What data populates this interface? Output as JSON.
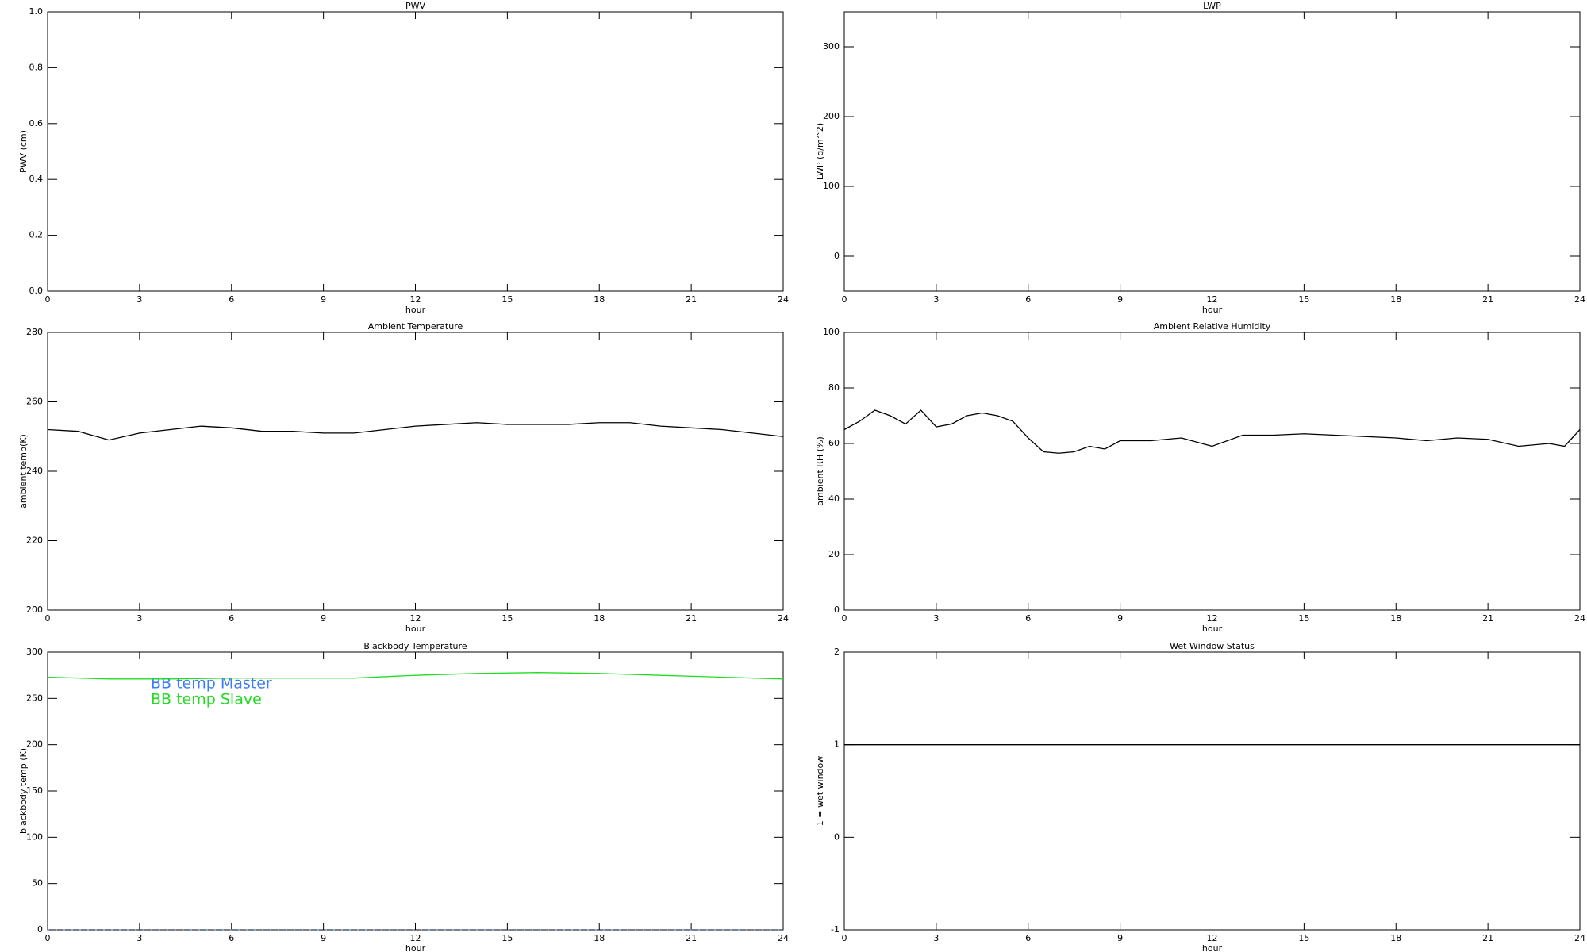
{
  "chart_data": [
    {
      "type": "line",
      "title": "PWV",
      "xlabel": "hour",
      "ylabel": "PWV (cm)",
      "xlim": [
        0,
        24
      ],
      "xticks": [
        0,
        3,
        6,
        9,
        12,
        15,
        18,
        21,
        24
      ],
      "ylim": [
        0,
        1
      ],
      "yticks": [
        {
          "value": 0,
          "label": "0.0"
        },
        0.2,
        0.4,
        0.6,
        0.8,
        {
          "value": 1,
          "label": "1.0"
        }
      ]
    },
    {
      "type": "line",
      "title": "LWP",
      "xlabel": "hour",
      "ylabel": "LWP (g/m^2)",
      "xlim": [
        0,
        24
      ],
      "xticks": [
        0,
        3,
        6,
        9,
        12,
        15,
        18,
        21,
        24
      ],
      "ylim": [
        -50,
        350
      ],
      "yticks": [
        0,
        100,
        200,
        300
      ]
    },
    {
      "type": "line",
      "title": "Ambient Temperature",
      "xlabel": "hour",
      "ylabel": "ambient temp(K)",
      "xlim": [
        0,
        24
      ],
      "xticks": [
        0,
        3,
        6,
        9,
        12,
        15,
        18,
        21,
        24
      ],
      "ylim": [
        200,
        280
      ],
      "yticks": [
        200,
        220,
        240,
        260,
        280
      ],
      "x": [
        0,
        1,
        2,
        3,
        4,
        5,
        6,
        7,
        8,
        9,
        10,
        11,
        12,
        13,
        14,
        15,
        16,
        17,
        18,
        19,
        20,
        21,
        22,
        23,
        24
      ],
      "series": [
        {
          "color": "#000000",
          "values": [
            252,
            251.5,
            249,
            251,
            252,
            253,
            252.5,
            251.5,
            251.5,
            251,
            251,
            252,
            253,
            253.5,
            254,
            253.5,
            253.5,
            253.5,
            254,
            254,
            253,
            252.5,
            252,
            251,
            250
          ]
        }
      ]
    },
    {
      "type": "line",
      "title": "Ambient Relative Humidity",
      "xlabel": "hour",
      "ylabel": "ambient RH (%)",
      "xlim": [
        0,
        24
      ],
      "xticks": [
        0,
        3,
        6,
        9,
        12,
        15,
        18,
        21,
        24
      ],
      "ylim": [
        0,
        100
      ],
      "yticks": [
        0,
        20,
        40,
        60,
        80,
        100
      ],
      "x": [
        0,
        0.5,
        1,
        1.5,
        2,
        2.5,
        3,
        3.5,
        4,
        4.5,
        5,
        5.5,
        6,
        6.5,
        7,
        7.5,
        8,
        8.5,
        9,
        10,
        11,
        12,
        13,
        14,
        15,
        16,
        17,
        18,
        19,
        20,
        21,
        22,
        23,
        23.5,
        24
      ],
      "series": [
        {
          "color": "#000000",
          "values": [
            65,
            68,
            72,
            70,
            67,
            72,
            66,
            67,
            70,
            71,
            70,
            68,
            62,
            57,
            56.5,
            57,
            59,
            58,
            61,
            61,
            62,
            59,
            63,
            63,
            63.5,
            63,
            62.5,
            62,
            61,
            62,
            61.5,
            59,
            60,
            59,
            65
          ]
        }
      ]
    },
    {
      "type": "line",
      "title": "Blackbody Temperature",
      "xlabel": "hour",
      "ylabel": "blackbody temp (K)",
      "xlim": [
        0,
        24
      ],
      "xticks": [
        0,
        3,
        6,
        9,
        12,
        15,
        18,
        21,
        24
      ],
      "ylim": [
        0,
        300
      ],
      "yticks": [
        0,
        50,
        100,
        150,
        200,
        250,
        300
      ],
      "x": [
        0,
        2,
        4,
        6,
        8,
        10,
        12,
        14,
        16,
        18,
        20,
        22,
        24
      ],
      "series": [
        {
          "name": "BB temp Master",
          "color": "#3b7bff",
          "values": [
            0,
            0,
            0,
            0,
            0,
            0,
            0,
            0,
            0,
            0,
            0,
            0,
            0
          ]
        },
        {
          "name": "BB temp Slave",
          "color": "#22dd22",
          "values": [
            273,
            271,
            271,
            272,
            272,
            272,
            275,
            277,
            278,
            277,
            275,
            273,
            271
          ]
        }
      ]
    },
    {
      "type": "line",
      "title": "Wet Window Status",
      "xlabel": "hour",
      "ylabel": "1 = wet window",
      "xlim": [
        0,
        24
      ],
      "xticks": [
        0,
        3,
        6,
        9,
        12,
        15,
        18,
        21,
        24
      ],
      "ylim": [
        -1,
        2
      ],
      "yticks": [
        -1,
        0,
        1,
        2
      ],
      "x": [
        0,
        24
      ],
      "series": [
        {
          "color": "#000000",
          "values": [
            1,
            1
          ]
        }
      ]
    }
  ]
}
